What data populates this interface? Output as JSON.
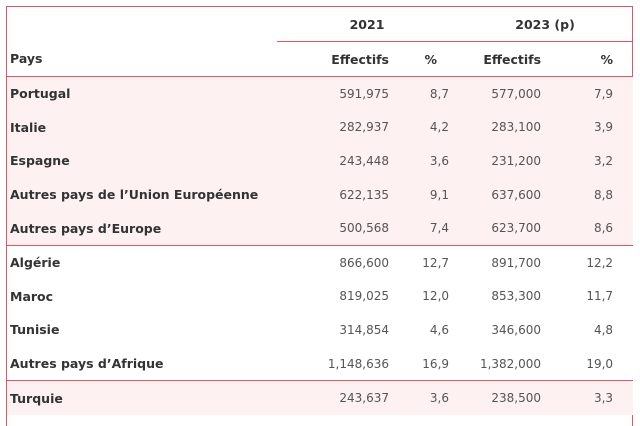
{
  "table": {
    "year_headers": [
      "2021",
      "2023 (p)"
    ],
    "col_headers": [
      "Pays",
      "Effectifs",
      "%",
      "Effectifs",
      "%"
    ],
    "groups": [
      {
        "rows": [
          {
            "pays": "Portugal",
            "eff_2021": "591,975",
            "pct_2021": "8,7",
            "eff_2023": "577,000",
            "pct_2023": "7,9"
          },
          {
            "pays": "Italie",
            "eff_2021": "282,937",
            "pct_2021": "4,2",
            "eff_2023": "283,100",
            "pct_2023": "3,9"
          },
          {
            "pays": "Espagne",
            "eff_2021": "243,448",
            "pct_2021": "3,6",
            "eff_2023": "231,200",
            "pct_2023": "3,2"
          },
          {
            "pays": "Autres pays de l’Union Européenne",
            "eff_2021": "622,135",
            "pct_2021": "9,1",
            "eff_2023": "637,600",
            "pct_2023": "8,8"
          },
          {
            "pays": "Autres pays d’Europe",
            "eff_2021": "500,568",
            "pct_2021": "7,4",
            "eff_2023": "623,700",
            "pct_2023": "8,6"
          }
        ]
      },
      {
        "rows": [
          {
            "pays": "Algérie",
            "eff_2021": "866,600",
            "pct_2021": "12,7",
            "eff_2023": "891,700",
            "pct_2023": "12,2"
          },
          {
            "pays": "Maroc",
            "eff_2021": "819,025",
            "pct_2021": "12,0",
            "eff_2023": "853,300",
            "pct_2023": "11,7"
          },
          {
            "pays": "Tunisie",
            "eff_2021": "314,854",
            "pct_2021": "4,6",
            "eff_2023": "346,600",
            "pct_2023": "4,8"
          },
          {
            "pays": "Autres pays d’Afrique",
            "eff_2021": "1,148,636",
            "pct_2021": "16,9",
            "eff_2023": "1,382,000",
            "pct_2023": "19,0"
          }
        ]
      },
      {
        "rows": [
          {
            "pays": "Turquie",
            "eff_2021": "243,637",
            "pct_2021": "3,6",
            "eff_2023": "238,500",
            "pct_2023": "3,3"
          }
        ]
      }
    ]
  }
}
